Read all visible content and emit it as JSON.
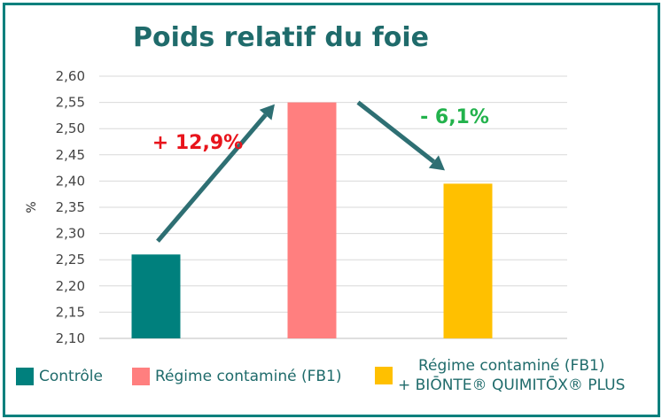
{
  "chart_data": {
    "type": "bar",
    "title": "Poids relatif du foie",
    "ylabel": "%",
    "xlabel": "",
    "ylim": [
      2.1,
      2.6
    ],
    "yticks": [
      "2,10",
      "2,15",
      "2,20",
      "2,25",
      "2,30",
      "2,35",
      "2,40",
      "2,45",
      "2,50",
      "2,55",
      "2,60"
    ],
    "grid": true,
    "legend_position": "bottom",
    "categories": [
      "Contrôle",
      "Régime contaminé (FB1)",
      "Régime contaminé (FB1) + BIŌNTE® QUIMITŌX® PLUS"
    ],
    "values": [
      2.26,
      2.55,
      2.395
    ],
    "colors": [
      "#00807d",
      "#ff7f7f",
      "#ffc000"
    ],
    "annotations": [
      {
        "text": "+ 12,9%",
        "color": "#e8141c"
      },
      {
        "text": "- 6,1%",
        "color": "#22b24c"
      }
    ],
    "arrow_color": "#2e6f73"
  },
  "legend": {
    "items": [
      {
        "label": "Contrôle",
        "color": "#00807d"
      },
      {
        "label": "Régime contaminé (FB1)",
        "color": "#ff7f7f"
      },
      {
        "label_line1": "Régime contaminé (FB1)",
        "label_line2": "+ BIŌNTE® QUIMITŌX® PLUS",
        "color": "#ffc000"
      }
    ]
  },
  "frame_color": "#00807d"
}
